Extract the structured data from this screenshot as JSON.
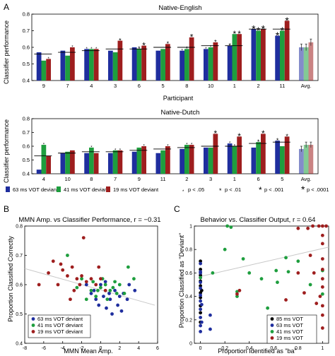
{
  "panel_letters": [
    "A",
    "B",
    "C"
  ],
  "chart_data": [
    {
      "type": "bar",
      "title": "Native-English",
      "xlabel": "Participant",
      "ylabel": "Classifier performance",
      "ylim": [
        0.4,
        0.8
      ],
      "yticks": [
        0.4,
        0.5,
        0.6,
        0.7,
        0.8
      ],
      "categories": [
        "9",
        "7",
        "4",
        "3",
        "6",
        "5",
        "8",
        "10",
        "1",
        "2",
        "11",
        "Avg."
      ],
      "series": [
        {
          "name": "63 ms VOT deviant",
          "values": [
            0.57,
            0.58,
            0.59,
            0.58,
            0.6,
            0.58,
            0.58,
            0.59,
            0.61,
            0.71,
            0.67,
            0.6
          ]
        },
        {
          "name": "41 ms VOT deviant",
          "values": [
            0.52,
            0.55,
            0.59,
            0.57,
            0.59,
            0.59,
            0.59,
            0.6,
            0.68,
            0.7,
            0.7,
            0.6
          ]
        },
        {
          "name": "19 ms VOT deviant",
          "values": [
            0.53,
            0.6,
            0.59,
            0.64,
            0.61,
            0.62,
            0.66,
            0.63,
            0.68,
            0.71,
            0.76,
            0.63
          ]
        }
      ],
      "chance_lines": [
        0.56,
        0.57,
        0.58,
        0.59,
        0.59,
        0.6,
        0.6,
        0.61,
        0.61,
        0.71,
        0.71,
        null
      ],
      "sig_markers": [
        [
          "",
          "",
          "*"
        ],
        [
          "",
          "",
          "*"
        ],
        [
          "*",
          "*",
          "*"
        ],
        [
          "",
          "",
          "*"
        ],
        [
          "",
          "*",
          "*"
        ],
        [
          "",
          "",
          "*"
        ],
        [
          "*",
          "*",
          "*"
        ],
        [
          "*",
          "*",
          "*"
        ],
        [
          "*",
          "*",
          "*"
        ],
        [
          "*",
          "*",
          "*"
        ],
        [
          "*",
          "*",
          "*"
        ],
        [
          "",
          "",
          ""
        ]
      ],
      "sig_levels": [
        [
          0,
          0,
          1
        ],
        [
          0,
          0,
          1
        ],
        [
          1,
          1,
          1
        ],
        [
          0,
          0,
          2
        ],
        [
          0,
          2,
          3
        ],
        [
          0,
          0,
          2
        ],
        [
          1,
          2,
          3
        ],
        [
          1,
          1,
          2
        ],
        [
          2,
          3,
          3
        ],
        [
          4,
          4,
          4
        ],
        [
          4,
          4,
          4
        ],
        [
          0,
          0,
          0
        ]
      ],
      "avg_errors": [
        0.02,
        0.02,
        0.02
      ]
    },
    {
      "type": "bar",
      "title": "Native-Dutch",
      "xlabel": "Participant",
      "ylabel": "Classifier performance",
      "ylim": [
        0.4,
        0.8
      ],
      "yticks": [
        0.4,
        0.5,
        0.6,
        0.7,
        0.8
      ],
      "categories": [
        "4",
        "10",
        "8",
        "7",
        "9",
        "11",
        "2",
        "3",
        "1",
        "6",
        "5",
        "Avg."
      ],
      "series": [
        {
          "name": "63 ms VOT deviant",
          "values": [
            0.43,
            0.55,
            0.55,
            0.55,
            0.56,
            0.55,
            0.58,
            0.59,
            0.62,
            0.59,
            0.64,
            0.58
          ]
        },
        {
          "name": "41 ms VOT deviant",
          "values": [
            0.61,
            0.56,
            0.59,
            0.57,
            0.59,
            0.57,
            0.61,
            0.59,
            0.6,
            0.63,
            0.6,
            0.61
          ]
        },
        {
          "name": "19 ms VOT deviant",
          "values": [
            0.53,
            0.57,
            0.55,
            0.57,
            0.6,
            0.6,
            0.61,
            0.69,
            0.67,
            0.69,
            0.67,
            0.61
          ]
        }
      ],
      "chance_lines": [
        0.53,
        0.55,
        0.56,
        0.56,
        0.57,
        0.58,
        0.59,
        0.6,
        0.6,
        0.62,
        0.63,
        null
      ],
      "sig_markers": [
        [
          "",
          "*",
          ""
        ],
        [
          "",
          "",
          ""
        ],
        [
          "",
          "*",
          ""
        ],
        [
          "",
          "*",
          "*"
        ],
        [
          "",
          "",
          "*"
        ],
        [
          "",
          "",
          "*"
        ],
        [
          "",
          "*",
          "*"
        ],
        [
          "",
          "",
          "*"
        ],
        [
          "*",
          "*",
          "*"
        ],
        [
          "",
          "*",
          "*"
        ],
        [
          "*",
          "",
          "*"
        ],
        [
          "",
          "",
          ""
        ]
      ],
      "sig_levels": [
        [
          0,
          1,
          0
        ],
        [
          0,
          0,
          0
        ],
        [
          0,
          1,
          0
        ],
        [
          0,
          1,
          1
        ],
        [
          0,
          0,
          1
        ],
        [
          0,
          0,
          1
        ],
        [
          0,
          1,
          1
        ],
        [
          0,
          0,
          3
        ],
        [
          1,
          1,
          3
        ],
        [
          0,
          2,
          3
        ],
        [
          2,
          0,
          2
        ],
        [
          0,
          0,
          0
        ]
      ],
      "avg_errors": [
        0.02,
        0.02,
        0.02
      ]
    },
    {
      "type": "scatter",
      "title": "MMN Amp. vs Classifier Performance, r = −0.31",
      "xlabel": "MMN Mean Amp.",
      "ylabel": "Proportion Classified Correctly",
      "xlim": [
        -8,
        6
      ],
      "ylim": [
        0.4,
        0.8
      ],
      "xticks": [
        -8,
        -6,
        -4,
        -2,
        0,
        2,
        4,
        6
      ],
      "yticks": [
        0.4,
        0.5,
        0.6,
        0.7,
        0.8
      ],
      "trend": [
        [
          -8,
          0.655
        ],
        [
          5.7,
          0.53
        ]
      ],
      "series": [
        {
          "name": "63 ms VOT deviant",
          "points": [
            [
              -1.5,
              0.6
            ],
            [
              -1,
              0.57
            ],
            [
              -0.5,
              0.55
            ],
            [
              0,
              0.6
            ],
            [
              0.3,
              0.56
            ],
            [
              0.6,
              0.52
            ],
            [
              1,
              0.55
            ],
            [
              1.5,
              0.58
            ],
            [
              2,
              0.56
            ],
            [
              2.4,
              0.57
            ],
            [
              3,
              0.6
            ],
            [
              -0.2,
              0.53
            ],
            [
              1.2,
              0.5
            ],
            [
              2.8,
              0.55
            ],
            [
              0.5,
              0.61
            ],
            [
              1.8,
              0.53
            ],
            [
              -0.7,
              0.58
            ],
            [
              3.6,
              0.58
            ],
            [
              2.2,
              0.51
            ],
            [
              0.9,
              0.57
            ]
          ]
        },
        {
          "name": "41 ms VOT deviant",
          "points": [
            [
              -3.5,
              0.7
            ],
            [
              -2,
              0.62
            ],
            [
              -1.5,
              0.55
            ],
            [
              -1,
              0.58
            ],
            [
              -0.5,
              0.56
            ],
            [
              0,
              0.59
            ],
            [
              0.5,
              0.6
            ],
            [
              1,
              0.58
            ],
            [
              1.5,
              0.61
            ],
            [
              2,
              0.6
            ],
            [
              2.5,
              0.57
            ],
            [
              3.5,
              0.62
            ],
            [
              -0.8,
              0.61
            ],
            [
              0.2,
              0.62
            ],
            [
              1.3,
              0.59
            ],
            [
              -2.5,
              0.59
            ],
            [
              0.7,
              0.55
            ],
            [
              2.9,
              0.66
            ],
            [
              -0.3,
              0.58
            ],
            [
              1.7,
              0.57
            ]
          ]
        },
        {
          "name": "19 ms VOT deviant",
          "points": [
            [
              -6.5,
              0.6
            ],
            [
              -5.5,
              0.64
            ],
            [
              -5,
              0.68
            ],
            [
              -4.5,
              0.6
            ],
            [
              -4,
              0.65
            ],
            [
              -3.5,
              0.63
            ],
            [
              -3,
              0.66
            ],
            [
              -2.5,
              0.62
            ],
            [
              -2,
              0.63
            ],
            [
              -1.5,
              0.61
            ],
            [
              -1,
              0.62
            ],
            [
              -0.5,
              0.6
            ],
            [
              0,
              0.62
            ],
            [
              0.5,
              0.58
            ],
            [
              -2.8,
              0.58
            ],
            [
              -1.8,
              0.76
            ],
            [
              -4.2,
              0.67
            ],
            [
              -3.2,
              0.55
            ],
            [
              -0.2,
              0.66
            ],
            [
              -2.2,
              0.6
            ]
          ]
        }
      ]
    },
    {
      "type": "scatter",
      "title": "Behavior vs. Classifier Output, r = 0.64",
      "xlabel": "Proportion Identified as \"ba\"",
      "ylabel": "Proportion Classified as \"Deviant\"",
      "xlim": [
        -0.05,
        1.05
      ],
      "ylim": [
        0,
        1
      ],
      "xticks": [
        0,
        0.2,
        0.4,
        0.6,
        0.8,
        1
      ],
      "yticks": [
        0,
        0.2,
        0.4,
        0.6,
        0.8,
        1
      ],
      "trend": [
        [
          0,
          0.57
        ],
        [
          1.05,
          0.82
        ]
      ],
      "series": [
        {
          "name": "85 ms VOT",
          "points": [
            [
              0,
              0.18
            ],
            [
              0,
              0.26
            ],
            [
              0,
              0.32
            ],
            [
              0,
              0.39
            ],
            [
              0,
              0.43
            ],
            [
              0,
              0.49
            ],
            [
              0,
              0.53
            ],
            [
              0,
              0.58
            ],
            [
              0,
              0.63
            ],
            [
              0,
              0.7
            ],
            [
              0.01,
              0.45
            ]
          ]
        },
        {
          "name": "63 ms VOT",
          "points": [
            [
              0,
              0.1
            ],
            [
              0,
              0.15
            ],
            [
              0,
              0.22
            ],
            [
              0,
              0.29
            ],
            [
              0,
              0.36
            ],
            [
              0,
              0.41
            ],
            [
              0,
              0.47
            ],
            [
              0,
              0.52
            ],
            [
              0,
              0.56
            ],
            [
              0,
              0.61
            ],
            [
              0,
              0.68
            ],
            [
              0.01,
              0.33
            ],
            [
              0.01,
              0.18
            ],
            [
              0.08,
              0.12
            ],
            [
              0.08,
              0.24
            ],
            [
              0,
              0.6
            ]
          ]
        },
        {
          "name": "41 ms VOT",
          "points": [
            [
              0,
              0.56
            ],
            [
              0.1,
              0.6
            ],
            [
              0.2,
              0.8
            ],
            [
              0.22,
              1.0
            ],
            [
              0.25,
              0.99
            ],
            [
              0.3,
              0.4
            ],
            [
              0.35,
              0.72
            ],
            [
              0.4,
              0.6
            ],
            [
              0.5,
              0.55
            ],
            [
              0.55,
              0.3
            ],
            [
              0.62,
              0.62
            ],
            [
              0.63,
              0.52
            ],
            [
              0.7,
              0.73
            ],
            [
              0.8,
              0.7
            ],
            [
              0.9,
              0.5
            ],
            [
              1.0,
              0.62
            ],
            [
              0.72,
              0.61
            ],
            [
              0.3,
              0.44
            ],
            [
              1.0,
              0.42
            ]
          ]
        },
        {
          "name": "19 ms VOT",
          "points": [
            [
              0.3,
              0.42
            ],
            [
              0.32,
              0.45
            ],
            [
              0.7,
              0.37
            ],
            [
              0.8,
              0.6
            ],
            [
              0.85,
              0.43
            ],
            [
              0.88,
              0.98
            ],
            [
              0.9,
              0.75
            ],
            [
              0.92,
              1.0
            ],
            [
              0.95,
              0.34
            ],
            [
              0.97,
              1.0
            ],
            [
              1.0,
              1.0
            ],
            [
              1.0,
              0.92
            ],
            [
              1.0,
              0.85
            ],
            [
              1.0,
              0.72
            ],
            [
              1.0,
              0.63
            ],
            [
              1.0,
              0.55
            ],
            [
              1.0,
              0.48
            ],
            [
              1.0,
              0.32
            ],
            [
              1.0,
              0.24
            ],
            [
              0.98,
              0.4
            ],
            [
              1.03,
              1.0
            ],
            [
              0.93,
              0.6
            ],
            [
              0.8,
              0.98
            ],
            [
              1.0,
              0.13
            ]
          ]
        }
      ]
    }
  ],
  "legend_A": {
    "items": [
      "63 ms VOT deviant",
      "41 ms VOT deviant",
      "19 ms VOT deviant"
    ],
    "sig": [
      "p < .05",
      "p < .01",
      "p < .001",
      "p < .0001"
    ],
    "star": "*"
  },
  "colors": {
    "s63": "#1f2e9e",
    "s41": "#1e9e3e",
    "s19": "#9e1e1e",
    "avg63": "#1f2e9e",
    "avg41": "#1e9e3e",
    "avg19": "#9e1e1e",
    "s85": "#000000",
    "trend": "#c8c8c8"
  }
}
